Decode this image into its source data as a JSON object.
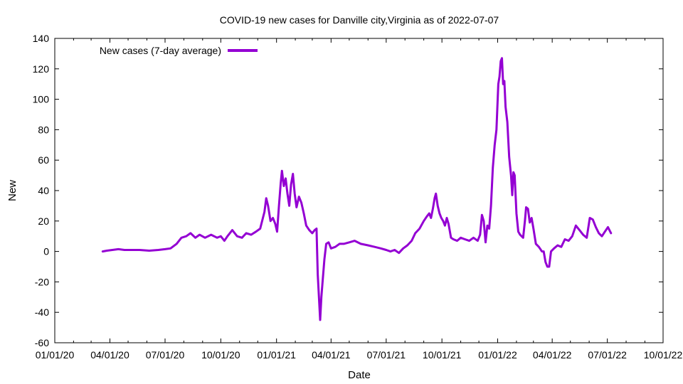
{
  "chart_data": {
    "type": "line",
    "title": "COVID-19 new cases for Danville city,Virginia as of 2022-07-07",
    "xlabel": "Date",
    "ylabel": "New",
    "xlim": [
      "2020-01-01",
      "2022-10-01"
    ],
    "ylim": [
      -60,
      140
    ],
    "x_ticks": [
      "01/01/20",
      "04/01/20",
      "07/01/20",
      "10/01/20",
      "01/01/21",
      "04/01/21",
      "07/01/21",
      "10/01/21",
      "01/01/22",
      "04/01/22",
      "07/01/22",
      "10/01/22"
    ],
    "y_ticks": [
      -60,
      -40,
      -20,
      0,
      20,
      40,
      60,
      80,
      100,
      120,
      140
    ],
    "legend": {
      "position": "top-left"
    },
    "grid": false,
    "series": [
      {
        "name": "New cases (7-day average)",
        "color": "#9400D3",
        "points": [
          [
            "2020-03-20",
            0
          ],
          [
            "2020-03-27",
            0.5
          ],
          [
            "2020-04-05",
            1
          ],
          [
            "2020-04-15",
            1.5
          ],
          [
            "2020-04-25",
            1
          ],
          [
            "2020-05-05",
            1
          ],
          [
            "2020-05-20",
            1
          ],
          [
            "2020-06-05",
            0.5
          ],
          [
            "2020-06-20",
            1
          ],
          [
            "2020-07-01",
            1.5
          ],
          [
            "2020-07-10",
            2
          ],
          [
            "2020-07-20",
            5
          ],
          [
            "2020-07-28",
            9
          ],
          [
            "2020-08-05",
            10
          ],
          [
            "2020-08-12",
            12
          ],
          [
            "2020-08-20",
            9
          ],
          [
            "2020-08-27",
            11
          ],
          [
            "2020-09-05",
            9
          ],
          [
            "2020-09-15",
            11
          ],
          [
            "2020-09-25",
            9
          ],
          [
            "2020-10-01",
            10
          ],
          [
            "2020-10-07",
            7
          ],
          [
            "2020-10-12",
            10
          ],
          [
            "2020-10-20",
            14
          ],
          [
            "2020-10-28",
            10
          ],
          [
            "2020-11-05",
            9
          ],
          [
            "2020-11-12",
            12
          ],
          [
            "2020-11-20",
            11
          ],
          [
            "2020-11-28",
            13
          ],
          [
            "2020-12-05",
            15
          ],
          [
            "2020-12-12",
            26
          ],
          [
            "2020-12-15",
            35
          ],
          [
            "2020-12-18",
            30
          ],
          [
            "2020-12-22",
            20
          ],
          [
            "2020-12-26",
            22
          ],
          [
            "2020-12-30",
            18
          ],
          [
            "2021-01-02",
            13
          ],
          [
            "2021-01-05",
            30
          ],
          [
            "2021-01-08",
            45
          ],
          [
            "2021-01-10",
            53
          ],
          [
            "2021-01-13",
            43
          ],
          [
            "2021-01-16",
            48
          ],
          [
            "2021-01-19",
            38
          ],
          [
            "2021-01-22",
            30
          ],
          [
            "2021-01-25",
            44
          ],
          [
            "2021-01-28",
            51
          ],
          [
            "2021-01-31",
            38
          ],
          [
            "2021-02-03",
            29
          ],
          [
            "2021-02-07",
            36
          ],
          [
            "2021-02-11",
            32
          ],
          [
            "2021-02-15",
            25
          ],
          [
            "2021-02-19",
            17
          ],
          [
            "2021-02-24",
            14
          ],
          [
            "2021-03-01",
            12
          ],
          [
            "2021-03-05",
            14
          ],
          [
            "2021-03-08",
            15
          ],
          [
            "2021-03-10",
            -15
          ],
          [
            "2021-03-12",
            -30
          ],
          [
            "2021-03-14",
            -45
          ],
          [
            "2021-03-16",
            -30
          ],
          [
            "2021-03-18",
            -20
          ],
          [
            "2021-03-21",
            -5
          ],
          [
            "2021-03-24",
            5
          ],
          [
            "2021-03-28",
            6
          ],
          [
            "2021-04-01",
            2
          ],
          [
            "2021-04-08",
            3
          ],
          [
            "2021-04-15",
            5
          ],
          [
            "2021-04-22",
            5
          ],
          [
            "2021-05-01",
            6
          ],
          [
            "2021-05-10",
            7
          ],
          [
            "2021-05-20",
            5
          ],
          [
            "2021-06-01",
            4
          ],
          [
            "2021-06-12",
            3
          ],
          [
            "2021-06-22",
            2
          ],
          [
            "2021-07-01",
            1
          ],
          [
            "2021-07-08",
            0
          ],
          [
            "2021-07-15",
            1
          ],
          [
            "2021-07-22",
            -1
          ],
          [
            "2021-07-29",
            2
          ],
          [
            "2021-08-05",
            4
          ],
          [
            "2021-08-12",
            7
          ],
          [
            "2021-08-18",
            12
          ],
          [
            "2021-08-25",
            15
          ],
          [
            "2021-09-01",
            20
          ],
          [
            "2021-09-06",
            23
          ],
          [
            "2021-09-10",
            25
          ],
          [
            "2021-09-13",
            22
          ],
          [
            "2021-09-16",
            28
          ],
          [
            "2021-09-19",
            35
          ],
          [
            "2021-09-21",
            38
          ],
          [
            "2021-09-24",
            30
          ],
          [
            "2021-09-27",
            25
          ],
          [
            "2021-09-30",
            22
          ],
          [
            "2021-10-03",
            20
          ],
          [
            "2021-10-06",
            17
          ],
          [
            "2021-10-09",
            22
          ],
          [
            "2021-10-12",
            18
          ],
          [
            "2021-10-16",
            9
          ],
          [
            "2021-10-20",
            8
          ],
          [
            "2021-10-26",
            7
          ],
          [
            "2021-11-01",
            9
          ],
          [
            "2021-11-08",
            8
          ],
          [
            "2021-11-15",
            7
          ],
          [
            "2021-11-22",
            9
          ],
          [
            "2021-11-29",
            7
          ],
          [
            "2021-12-03",
            11
          ],
          [
            "2021-12-06",
            24
          ],
          [
            "2021-12-09",
            20
          ],
          [
            "2021-12-12",
            6
          ],
          [
            "2021-12-15",
            17
          ],
          [
            "2021-12-18",
            15
          ],
          [
            "2021-12-21",
            30
          ],
          [
            "2021-12-24",
            55
          ],
          [
            "2021-12-27",
            70
          ],
          [
            "2021-12-30",
            80
          ],
          [
            "2022-01-02",
            110
          ],
          [
            "2022-01-04",
            115
          ],
          [
            "2022-01-06",
            125
          ],
          [
            "2022-01-08",
            127
          ],
          [
            "2022-01-10",
            110
          ],
          [
            "2022-01-12",
            112
          ],
          [
            "2022-01-14",
            95
          ],
          [
            "2022-01-17",
            85
          ],
          [
            "2022-01-20",
            62
          ],
          [
            "2022-01-23",
            50
          ],
          [
            "2022-01-25",
            37
          ],
          [
            "2022-01-27",
            52
          ],
          [
            "2022-01-29",
            50
          ],
          [
            "2022-02-01",
            25
          ],
          [
            "2022-02-04",
            13
          ],
          [
            "2022-02-07",
            11
          ],
          [
            "2022-02-12",
            9
          ],
          [
            "2022-02-15",
            20
          ],
          [
            "2022-02-17",
            29
          ],
          [
            "2022-02-20",
            28
          ],
          [
            "2022-02-23",
            19
          ],
          [
            "2022-02-26",
            22
          ],
          [
            "2022-03-01",
            15
          ],
          [
            "2022-03-05",
            5
          ],
          [
            "2022-03-10",
            3
          ],
          [
            "2022-03-15",
            0
          ],
          [
            "2022-03-18",
            0
          ],
          [
            "2022-03-21",
            -7
          ],
          [
            "2022-03-24",
            -10
          ],
          [
            "2022-03-27",
            -10
          ],
          [
            "2022-03-30",
            0
          ],
          [
            "2022-04-04",
            2
          ],
          [
            "2022-04-10",
            4
          ],
          [
            "2022-04-16",
            3
          ],
          [
            "2022-04-22",
            8
          ],
          [
            "2022-04-28",
            7
          ],
          [
            "2022-05-04",
            10
          ],
          [
            "2022-05-10",
            17
          ],
          [
            "2022-05-16",
            14
          ],
          [
            "2022-05-22",
            11
          ],
          [
            "2022-05-28",
            9
          ],
          [
            "2022-06-02",
            22
          ],
          [
            "2022-06-07",
            21
          ],
          [
            "2022-06-12",
            16
          ],
          [
            "2022-06-17",
            12
          ],
          [
            "2022-06-22",
            10
          ],
          [
            "2022-06-27",
            13
          ],
          [
            "2022-07-02",
            16
          ],
          [
            "2022-07-07",
            12
          ]
        ]
      }
    ]
  }
}
